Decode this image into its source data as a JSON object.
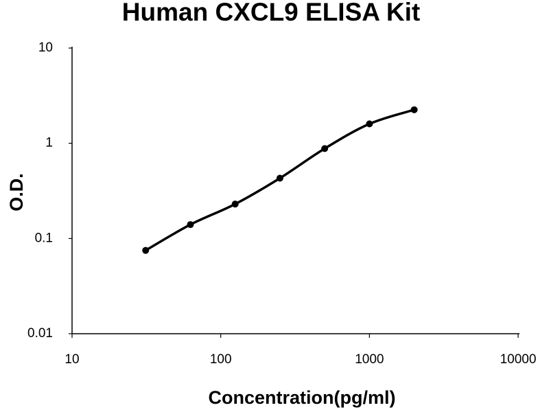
{
  "chart_data": {
    "type": "line",
    "title": "Human CXCL9 ELISA Kit",
    "x_label": "Concentration(pg/ml)",
    "y_label": "O.D.",
    "x": [
      31.25,
      62.5,
      125,
      250,
      500,
      1000,
      2000
    ],
    "values": [
      0.075,
      0.14,
      0.23,
      0.43,
      0.88,
      1.6,
      2.25
    ],
    "color": "#000000",
    "markers": true,
    "smooth": true,
    "xlim": [
      10,
      10000
    ],
    "ylim": [
      0.01,
      10
    ],
    "xticks": [
      10,
      100,
      1000,
      10000
    ],
    "yticks": [
      0.01,
      0.1,
      1,
      10
    ],
    "x_log": true,
    "y_log": true,
    "grid": false
  }
}
